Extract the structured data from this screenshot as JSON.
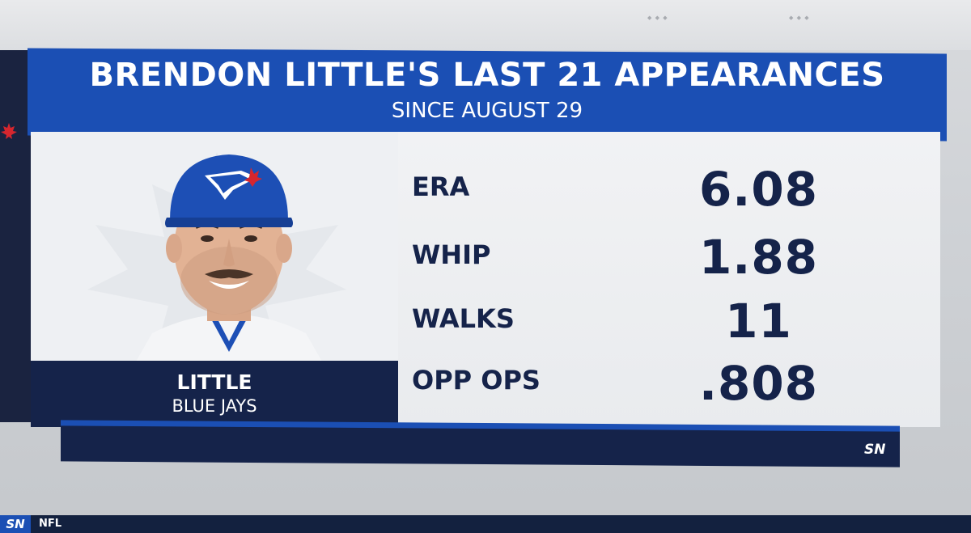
{
  "graphic": {
    "title": "BRENDON LITTLE'S LAST 21 APPEARANCES",
    "subtitle": "SINCE AUGUST 29"
  },
  "player": {
    "name": "LITTLE",
    "team": "BLUE JAYS"
  },
  "stats": [
    {
      "label": "ERA",
      "value": "6.08"
    },
    {
      "label": "WHIP",
      "value": "1.88"
    },
    {
      "label": "WALKS",
      "value": "11"
    },
    {
      "label": "OPP OPS",
      "value": ".808"
    }
  ],
  "branding": {
    "network_mark": "SN"
  },
  "ticker": {
    "network": "SN",
    "league": "NFL"
  },
  "colors": {
    "header_blue": "#1b4fb4",
    "navy": "#15234a",
    "panel_bg": "#eef0f3"
  }
}
